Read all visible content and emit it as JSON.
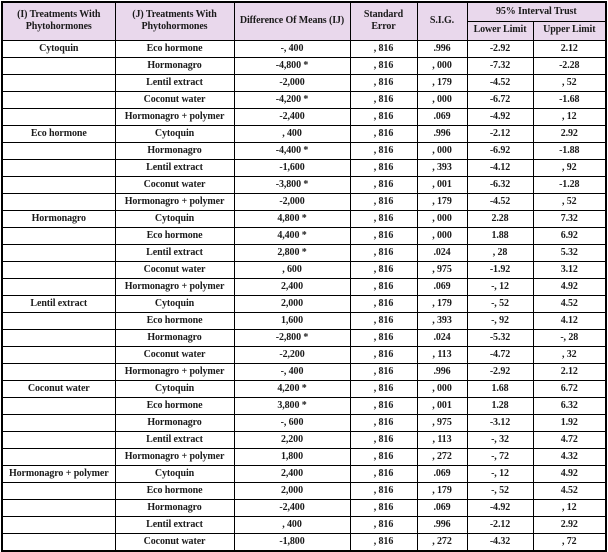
{
  "colors": {
    "header_bg": "#e9d8ec",
    "border": "#000000",
    "text": "#1b1b1b"
  },
  "header": {
    "col_i": "(I) Treatments With Phytohormones",
    "col_j": "(J) Treatments With Phytohormones",
    "col_diff": "Difference Of Means (IJ)",
    "col_se": "Standard Error",
    "col_sig": "S.I.G.",
    "col_ci": "95% Interval Trust",
    "col_lower": "Lower Limit",
    "col_upper": "Upper Limit"
  },
  "groups": [
    {
      "treatment": "Cytoquin",
      "rows": [
        {
          "j": "Eco hormone",
          "diff": "-, 400",
          "se": ", 816",
          "sig": ".996",
          "lower": "-2.92",
          "upper": "2.12"
        },
        {
          "j": "Hormonagro",
          "diff": "-4,800 *",
          "se": ", 816",
          "sig": ", 000",
          "lower": "-7.32",
          "upper": "-2.28"
        },
        {
          "j": "Lentil extract",
          "diff": "-2,000",
          "se": ", 816",
          "sig": ", 179",
          "lower": "-4.52",
          "upper": ", 52"
        },
        {
          "j": "Coconut water",
          "diff": "-4,200 *",
          "se": ", 816",
          "sig": ", 000",
          "lower": "-6.72",
          "upper": "-1.68"
        },
        {
          "j": "Hormonagro + polymer",
          "diff": "-2,400",
          "se": ", 816",
          "sig": ".069",
          "lower": "-4.92",
          "upper": ", 12"
        }
      ]
    },
    {
      "treatment": "Eco hormone",
      "rows": [
        {
          "j": "Cytoquin",
          "diff": ", 400",
          "se": ", 816",
          "sig": ".996",
          "lower": "-2.12",
          "upper": "2.92"
        },
        {
          "j": "Hormonagro",
          "diff": "-4,400 *",
          "se": ", 816",
          "sig": ", 000",
          "lower": "-6.92",
          "upper": "-1.88"
        },
        {
          "j": "Lentil extract",
          "diff": "-1,600",
          "se": ", 816",
          "sig": ", 393",
          "lower": "-4.12",
          "upper": ", 92"
        },
        {
          "j": "Coconut water",
          "diff": "-3,800 *",
          "se": ", 816",
          "sig": ", 001",
          "lower": "-6.32",
          "upper": "-1.28"
        },
        {
          "j": "Hormonagro + polymer",
          "diff": "-2,000",
          "se": ", 816",
          "sig": ", 179",
          "lower": "-4.52",
          "upper": ", 52"
        }
      ]
    },
    {
      "treatment": "Hormonagro",
      "rows": [
        {
          "j": "Cytoquin",
          "diff": "4,800 *",
          "se": ", 816",
          "sig": ", 000",
          "lower": "2.28",
          "upper": "7.32"
        },
        {
          "j": "Eco hormone",
          "diff": "4,400 *",
          "se": ", 816",
          "sig": ", 000",
          "lower": "1.88",
          "upper": "6.92"
        },
        {
          "j": "Lentil extract",
          "diff": "2,800 *",
          "se": ", 816",
          "sig": ".024",
          "lower": ", 28",
          "upper": "5.32"
        },
        {
          "j": "Coconut water",
          "diff": ", 600",
          "se": ", 816",
          "sig": ", 975",
          "lower": "-1.92",
          "upper": "3.12"
        },
        {
          "j": "Hormonagro + polymer",
          "diff": "2,400",
          "se": ", 816",
          "sig": ".069",
          "lower": "-, 12",
          "upper": "4.92"
        }
      ]
    },
    {
      "treatment": "Lentil extract",
      "rows": [
        {
          "j": "Cytoquin",
          "diff": "2,000",
          "se": ", 816",
          "sig": ", 179",
          "lower": "-, 52",
          "upper": "4.52"
        },
        {
          "j": "Eco hormone",
          "diff": "1,600",
          "se": ", 816",
          "sig": ", 393",
          "lower": "-, 92",
          "upper": "4.12"
        },
        {
          "j": "Hormonagro",
          "diff": "-2,800 *",
          "se": ", 816",
          "sig": ".024",
          "lower": "-5.32",
          "upper": "-, 28"
        },
        {
          "j": "Coconut water",
          "diff": "-2,200",
          "se": ", 816",
          "sig": ", 113",
          "lower": "-4.72",
          "upper": ", 32"
        },
        {
          "j": "Hormonagro + polymer",
          "diff": "-, 400",
          "se": ", 816",
          "sig": ".996",
          "lower": "-2.92",
          "upper": "2.12"
        }
      ]
    },
    {
      "treatment": "Coconut water",
      "rows": [
        {
          "j": "Cytoquin",
          "diff": "4,200 *",
          "se": ", 816",
          "sig": ", 000",
          "lower": "1.68",
          "upper": "6.72"
        },
        {
          "j": "Eco hormone",
          "diff": "3,800 *",
          "se": ", 816",
          "sig": ", 001",
          "lower": "1.28",
          "upper": "6.32"
        },
        {
          "j": "Hormonagro",
          "diff": "-, 600",
          "se": ", 816",
          "sig": ", 975",
          "lower": "-3.12",
          "upper": "1.92"
        },
        {
          "j": "Lentil extract",
          "diff": "2,200",
          "se": ", 816",
          "sig": ", 113",
          "lower": "-, 32",
          "upper": "4.72"
        },
        {
          "j": "Hormonagro + polymer",
          "diff": "1,800",
          "se": ", 816",
          "sig": ", 272",
          "lower": "-, 72",
          "upper": "4.32"
        }
      ]
    },
    {
      "treatment": "Hormonagro + polymer",
      "rows": [
        {
          "j": "Cytoquin",
          "diff": "2,400",
          "se": ", 816",
          "sig": ".069",
          "lower": "-, 12",
          "upper": "4.92"
        },
        {
          "j": "Eco hormone",
          "diff": "2,000",
          "se": ", 816",
          "sig": ", 179",
          "lower": "-, 52",
          "upper": "4.52"
        },
        {
          "j": "Hormonagro",
          "diff": "-2,400",
          "se": ", 816",
          "sig": ".069",
          "lower": "-4.92",
          "upper": ", 12"
        },
        {
          "j": "Lentil extract",
          "diff": ", 400",
          "se": ", 816",
          "sig": ".996",
          "lower": "-2.12",
          "upper": "2.92"
        },
        {
          "j": "Coconut water",
          "diff": "-1,800",
          "se": ", 816",
          "sig": ", 272",
          "lower": "-4.32",
          "upper": ", 72"
        }
      ]
    }
  ]
}
